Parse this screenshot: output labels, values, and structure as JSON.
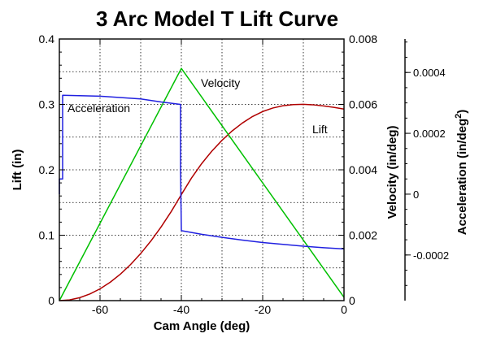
{
  "chart_data": {
    "type": "line",
    "title": "3 Arc Model T Lift Curve",
    "xlabel": "Cam Angle (deg)",
    "ylabel_left": "Lift (in)",
    "ylabel_right1": "Velocity (in/deg)",
    "ylabel_right2_main": "Acceleration (in/deg",
    "ylabel_right2_sup": "2",
    "ylabel_right2_end": ")",
    "xlim": [
      -70,
      0
    ],
    "ylim_lift": [
      0,
      0.4
    ],
    "ylim_velocity": [
      0,
      0.008
    ],
    "ylim_acceleration": [
      -0.00035,
      0.00051
    ],
    "grid": true,
    "x_ticks": [
      -60,
      -40,
      -20,
      0
    ],
    "x_tick_labels": [
      "-60",
      "-40",
      "-20",
      "0"
    ],
    "lift_ticks": [
      0,
      0.1,
      0.2,
      0.3,
      0.4
    ],
    "lift_tick_labels": [
      "0",
      "0.1",
      "0.2",
      "0.3",
      "0.4"
    ],
    "velocity_ticks": [
      0,
      0.002,
      0.004,
      0.006,
      0.008
    ],
    "velocity_tick_labels": [
      "0",
      "0.002",
      "0.004",
      "0.006",
      "0.008"
    ],
    "acceleration_ticks": [
      -0.0002,
      0,
      0.0002,
      0.0004
    ],
    "acceleration_tick_labels": [
      "-0.0002",
      "0",
      "0.0002",
      "0.0004"
    ],
    "series": [
      {
        "name": "Lift",
        "axis": "lift",
        "color": "#b00000",
        "x": [
          -70,
          -67.5,
          -65,
          -62.5,
          -60,
          -57.5,
          -55,
          -52.5,
          -50,
          -47.5,
          -45,
          -42.5,
          -40,
          -37.5,
          -35,
          -32.5,
          -30,
          -27.5,
          -25,
          -22.5,
          -20,
          -17.5,
          -15,
          -12.5,
          -10,
          -7.5,
          -5,
          -2.5,
          0
        ],
        "values": [
          0,
          0.0011,
          0.0045,
          0.0102,
          0.018,
          0.0281,
          0.0405,
          0.0551,
          0.072,
          0.0911,
          0.1125,
          0.1361,
          0.1621,
          0.1875,
          0.2095,
          0.2286,
          0.2451,
          0.2595,
          0.2715,
          0.2815,
          0.2891,
          0.2945,
          0.298,
          0.2997,
          0.3001,
          0.2993,
          0.2977,
          0.2955,
          0.2929
        ]
      },
      {
        "name": "Velocity",
        "axis": "velocity",
        "color": "#00c000",
        "x": [
          -70,
          -40,
          0
        ],
        "values": [
          0,
          0.0071,
          0.0001
        ]
      },
      {
        "name": "Acceleration",
        "axis": "acceleration",
        "color": "#2020e0",
        "x": [
          -70,
          -70,
          -69.2,
          -69.2,
          -60,
          -50,
          -45,
          -40.2,
          -40.2,
          -40,
          -35,
          -30,
          -25,
          -20,
          -15,
          -10,
          -5,
          0
        ],
        "values": [
          0,
          5e-05,
          5e-05,
          0.000325,
          0.000322,
          0.000313,
          0.000303,
          0.000295,
          7.95e-05,
          -0.00012,
          -0.000132,
          -0.000142,
          -0.000151,
          -0.000159,
          -0.000165,
          -0.000171,
          -0.000176,
          -0.00018
        ]
      }
    ],
    "annotations": {
      "velocity": "Velocity",
      "acceleration": "Acceleration",
      "lift": "Lift"
    }
  }
}
